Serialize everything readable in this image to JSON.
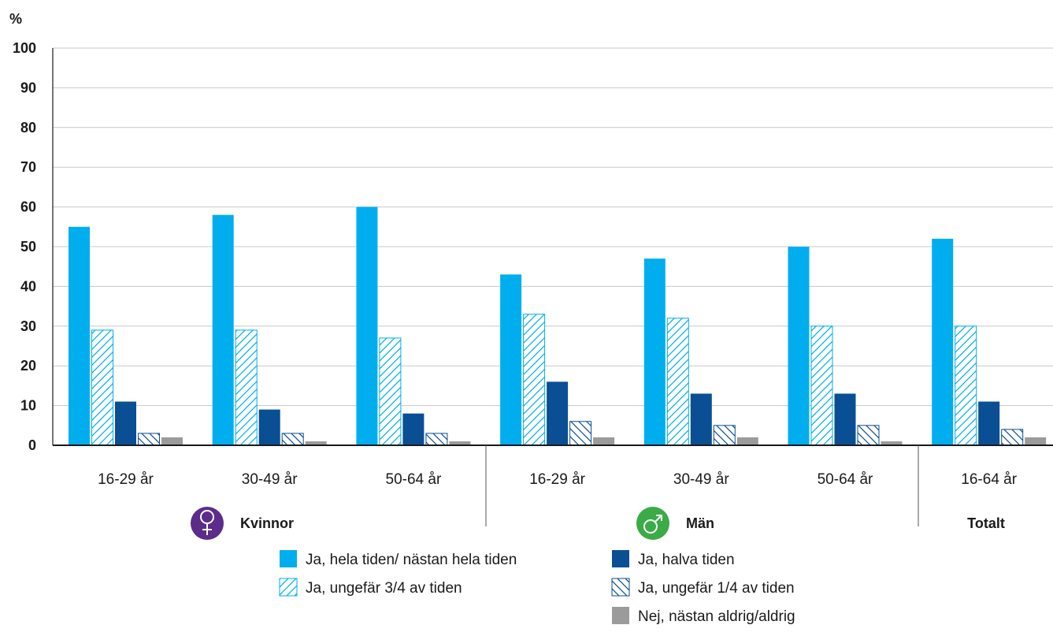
{
  "chart_data": {
    "type": "bar",
    "ylabel": "%",
    "ylim": [
      0,
      100
    ],
    "yticks": [
      0,
      10,
      20,
      30,
      40,
      50,
      60,
      70,
      80,
      90,
      100
    ],
    "grid": true,
    "categories": [
      "16-29 år",
      "30-49 år",
      "50-64 år",
      "16-29 år",
      "30-49 år",
      "50-64 år",
      "16-64 år"
    ],
    "groups": [
      {
        "label": "Kvinnor",
        "icon": "female-icon",
        "color": "#5b2c8a",
        "categories": [
          0,
          1,
          2
        ]
      },
      {
        "label": "Män",
        "icon": "male-icon",
        "color": "#3aab47",
        "categories": [
          3,
          4,
          5
        ]
      },
      {
        "label": "Totalt",
        "icon": "",
        "color": "",
        "categories": [
          6
        ]
      }
    ],
    "series": [
      {
        "name": "Ja, hela tiden/ nästan hela tiden",
        "color": "#00aeef",
        "pattern": "solid",
        "values": [
          55,
          58,
          60,
          43,
          47,
          50,
          52
        ]
      },
      {
        "name": "Ja, ungefär 3/4 av tiden",
        "color": "#00aeef",
        "pattern": "hatch-forward",
        "values": [
          29,
          29,
          27,
          33,
          32,
          30,
          30
        ]
      },
      {
        "name": "Ja, halva tiden",
        "color": "#0a4f94",
        "pattern": "solid",
        "values": [
          11,
          9,
          8,
          16,
          13,
          13,
          11
        ]
      },
      {
        "name": "Ja, ungefär 1/4 av tiden",
        "color": "#0a4f94",
        "pattern": "hatch-back",
        "values": [
          3,
          3,
          3,
          6,
          5,
          5,
          4
        ]
      },
      {
        "name": "Nej, nästan aldrig/aldrig",
        "color": "#9b9b9b",
        "pattern": "solid",
        "values": [
          2,
          1,
          1,
          2,
          2,
          1,
          2
        ]
      }
    ],
    "legend_position": "bottom-center"
  }
}
